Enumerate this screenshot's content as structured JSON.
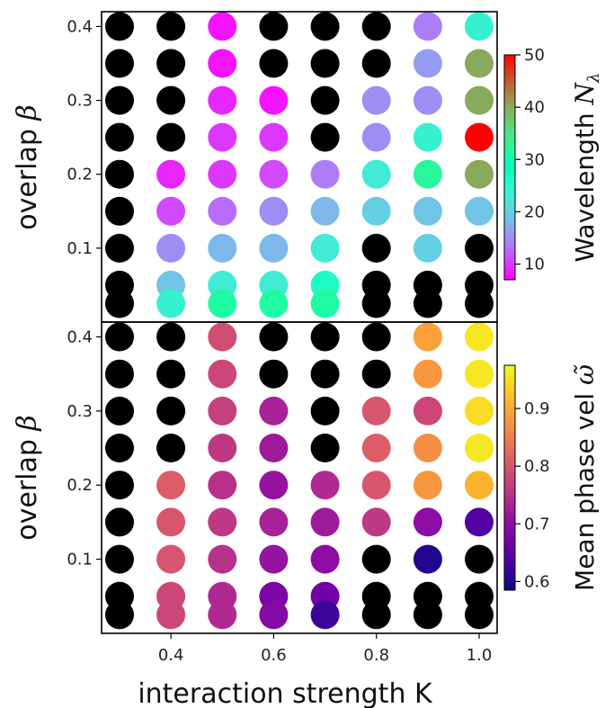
{
  "chart_data": [
    {
      "type": "scatter",
      "ylabel": "overlap",
      "ylabel_symbol": "β",
      "xlim": [
        0.265,
        1.035
      ],
      "ylim": [
        0.0,
        0.42
      ],
      "y_ticks": [
        0.1,
        0.2,
        0.3,
        0.4
      ],
      "y_tick_labels": [
        "0.1",
        "0.2",
        "0.3",
        "0.4"
      ],
      "colorbar": {
        "label": "Wavelength",
        "label_symbol": "N",
        "label_sub": "λ",
        "colormap": "rainbow",
        "range": [
          7,
          50
        ],
        "ticks": [
          10,
          20,
          30,
          40,
          50
        ],
        "tick_labels": [
          "10",
          "20",
          "30",
          "40",
          "50"
        ]
      },
      "x": [
        0.3,
        0.4,
        0.5,
        0.6,
        0.7,
        0.8,
        0.9,
        1.0
      ],
      "y": [
        0.4,
        0.35,
        0.3,
        0.25,
        0.2,
        0.15,
        0.1,
        0.05,
        0.025
      ],
      "values": [
        [
          null,
          null,
          8,
          null,
          null,
          null,
          14,
          24
        ],
        [
          null,
          null,
          8,
          null,
          null,
          null,
          16,
          40
        ],
        [
          null,
          null,
          9,
          8,
          null,
          15,
          15,
          40
        ],
        [
          null,
          null,
          10,
          10,
          null,
          15,
          24,
          50
        ],
        [
          null,
          9,
          10,
          11,
          14,
          23,
          32,
          40
        ],
        [
          null,
          11,
          13,
          15,
          18,
          20,
          19,
          19
        ],
        [
          null,
          15,
          18,
          18,
          23,
          null,
          20,
          null
        ],
        [
          null,
          19,
          23,
          23,
          26,
          null,
          null,
          null
        ],
        [
          null,
          24,
          31,
          31,
          31,
          null,
          null,
          null
        ]
      ]
    },
    {
      "type": "scatter",
      "xlabel": "interaction strength K",
      "ylabel": "overlap",
      "ylabel_symbol": "β",
      "xlim": [
        0.265,
        1.035
      ],
      "ylim": [
        0.0,
        0.42
      ],
      "x_ticks": [
        0.4,
        0.6,
        0.8,
        1.0
      ],
      "x_tick_labels": [
        "0.4",
        "0.6",
        "0.8",
        "1.0"
      ],
      "y_ticks": [
        0.1,
        0.2,
        0.3,
        0.4
      ],
      "y_tick_labels": [
        "0.1",
        "0.2",
        "0.3",
        "0.4"
      ],
      "colorbar": {
        "label": "Mean phase vel",
        "label_symbol": "ω̃",
        "colormap": "plasma",
        "range": [
          0.585,
          0.975
        ],
        "ticks": [
          0.6,
          0.7,
          0.8,
          0.9
        ],
        "tick_labels": [
          "0.6",
          "0.7",
          "0.8",
          "0.9"
        ]
      },
      "x": [
        0.3,
        0.4,
        0.5,
        0.6,
        0.7,
        0.8,
        0.9,
        1.0
      ],
      "y": [
        0.4,
        0.35,
        0.3,
        0.25,
        0.2,
        0.15,
        0.1,
        0.05,
        0.025
      ],
      "values": [
        [
          null,
          null,
          0.79,
          null,
          null,
          null,
          0.89,
          0.96
        ],
        [
          null,
          null,
          0.78,
          null,
          null,
          null,
          0.88,
          0.96
        ],
        [
          null,
          null,
          0.77,
          0.73,
          null,
          0.8,
          0.78,
          0.95
        ],
        [
          null,
          null,
          0.76,
          0.72,
          null,
          0.81,
          0.87,
          0.96
        ],
        [
          null,
          0.81,
          0.75,
          0.71,
          0.74,
          0.8,
          0.88,
          0.91
        ],
        [
          null,
          0.8,
          0.76,
          0.73,
          0.72,
          0.76,
          0.7,
          0.64
        ],
        [
          null,
          0.8,
          0.75,
          0.71,
          0.7,
          null,
          0.6,
          null
        ],
        [
          null,
          0.78,
          0.74,
          0.68,
          0.67,
          null,
          null,
          null
        ],
        [
          null,
          0.78,
          0.74,
          0.69,
          0.62,
          null,
          null,
          null
        ]
      ]
    }
  ]
}
